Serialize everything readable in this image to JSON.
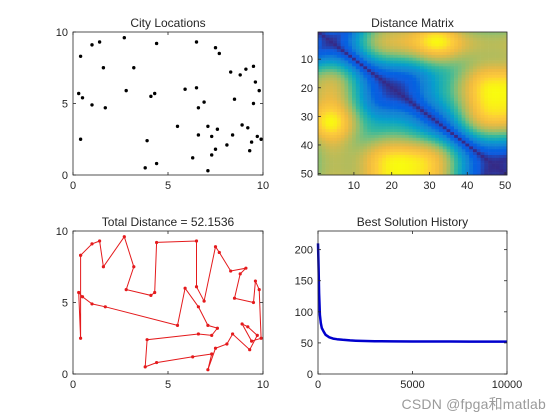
{
  "watermark": "CSDN @fpga和matlab",
  "chart_data": [
    {
      "type": "scatter",
      "title": "City Locations",
      "xlim": [
        0,
        10
      ],
      "ylim": [
        0,
        10
      ],
      "xticks": [
        "0",
        "5",
        "10"
      ],
      "yticks": [
        "0",
        "5",
        "10"
      ],
      "marker_color": "#000000",
      "points": [
        [
          0.4,
          8.3
        ],
        [
          1.0,
          9.1
        ],
        [
          1.4,
          9.3
        ],
        [
          1.6,
          7.5
        ],
        [
          2.7,
          9.6
        ],
        [
          3.2,
          7.5
        ],
        [
          4.4,
          9.2
        ],
        [
          6.5,
          9.3
        ],
        [
          7.5,
          8.9
        ],
        [
          7.7,
          8.5
        ],
        [
          8.8,
          7.0
        ],
        [
          9.5,
          7.6
        ],
        [
          9.6,
          6.5
        ],
        [
          0.3,
          5.7
        ],
        [
          0.5,
          5.4
        ],
        [
          1.0,
          4.9
        ],
        [
          1.7,
          4.7
        ],
        [
          2.8,
          5.9
        ],
        [
          4.1,
          5.5
        ],
        [
          4.3,
          5.7
        ],
        [
          6.6,
          4.7
        ],
        [
          6.5,
          6.1
        ],
        [
          6.9,
          5.1
        ],
        [
          9.5,
          5.0
        ],
        [
          9.8,
          5.9
        ],
        [
          0.4,
          2.5
        ],
        [
          3.9,
          2.4
        ],
        [
          5.5,
          3.4
        ],
        [
          6.6,
          2.8
        ],
        [
          7.1,
          3.4
        ],
        [
          7.6,
          3.2
        ],
        [
          7.3,
          2.7
        ],
        [
          8.1,
          2.1
        ],
        [
          8.4,
          2.8
        ],
        [
          9.2,
          3.3
        ],
        [
          9.4,
          2.3
        ],
        [
          9.7,
          2.7
        ],
        [
          9.9,
          2.5
        ],
        [
          7.5,
          1.8
        ],
        [
          9.3,
          1.7
        ],
        [
          3.8,
          0.5
        ],
        [
          4.4,
          0.8
        ],
        [
          6.3,
          1.2
        ],
        [
          7.1,
          0.3
        ],
        [
          7.3,
          1.4
        ],
        [
          8.5,
          5.3
        ],
        [
          5.9,
          6.0
        ],
        [
          8.9,
          3.5
        ],
        [
          9.1,
          7.4
        ],
        [
          8.3,
          7.2
        ]
      ]
    },
    {
      "type": "heatmap",
      "title": "Distance Matrix",
      "xlim": [
        0.5,
        50.5
      ],
      "ylim": [
        0.5,
        50.5
      ],
      "xticks": [
        "10",
        "20",
        "30",
        "40",
        "50"
      ],
      "yticks": [
        "10",
        "20",
        "30",
        "40",
        "50"
      ],
      "size": 50,
      "colormap": "parula"
    },
    {
      "type": "line",
      "title": "Total Distance = 52.1536",
      "xlim": [
        0,
        10
      ],
      "ylim": [
        0,
        10
      ],
      "xticks": [
        "0",
        "5",
        "10"
      ],
      "yticks": [
        "0",
        "5",
        "10"
      ],
      "line_color": "#e41a1c",
      "route": [
        [
          0.4,
          8.3
        ],
        [
          1.0,
          9.1
        ],
        [
          1.4,
          9.3
        ],
        [
          1.6,
          7.5
        ],
        [
          2.7,
          9.6
        ],
        [
          3.2,
          7.5
        ],
        [
          2.8,
          5.9
        ],
        [
          4.1,
          5.5
        ],
        [
          4.3,
          5.7
        ],
        [
          4.4,
          9.2
        ],
        [
          6.5,
          9.3
        ],
        [
          6.5,
          6.1
        ],
        [
          6.9,
          5.1
        ],
        [
          7.5,
          8.9
        ],
        [
          7.7,
          8.5
        ],
        [
          8.3,
          7.2
        ],
        [
          9.1,
          7.4
        ],
        [
          8.8,
          7.0
        ],
        [
          8.5,
          5.3
        ],
        [
          9.5,
          5.0
        ],
        [
          9.6,
          6.5
        ],
        [
          9.8,
          5.9
        ],
        [
          9.9,
          2.5
        ],
        [
          9.4,
          2.3
        ],
        [
          8.9,
          3.5
        ],
        [
          9.2,
          3.3
        ],
        [
          9.7,
          2.7
        ],
        [
          9.3,
          1.7
        ],
        [
          8.4,
          2.8
        ],
        [
          8.1,
          2.1
        ],
        [
          7.5,
          1.8
        ],
        [
          7.1,
          0.3
        ],
        [
          7.3,
          1.4
        ],
        [
          6.3,
          1.2
        ],
        [
          4.4,
          0.8
        ],
        [
          3.8,
          0.5
        ],
        [
          3.9,
          2.4
        ],
        [
          6.6,
          2.8
        ],
        [
          7.3,
          2.7
        ],
        [
          7.6,
          3.2
        ],
        [
          7.1,
          3.4
        ],
        [
          6.6,
          4.7
        ],
        [
          5.9,
          6.0
        ],
        [
          5.5,
          3.4
        ],
        [
          1.7,
          4.7
        ],
        [
          1.0,
          4.9
        ],
        [
          0.5,
          5.4
        ],
        [
          0.3,
          5.7
        ],
        [
          0.4,
          2.5
        ],
        [
          0.4,
          8.3
        ]
      ]
    },
    {
      "type": "line",
      "title": "Best Solution History",
      "xlim": [
        0,
        10000
      ],
      "ylim": [
        0,
        230
      ],
      "xticks": [
        "0",
        "5000",
        "10000"
      ],
      "yticks": [
        "0",
        "50",
        "100",
        "150",
        "200"
      ],
      "line_color": "#0000cd",
      "x": [
        0,
        30,
        60,
        100,
        150,
        200,
        300,
        400,
        600,
        800,
        1000,
        1300,
        1700,
        2000,
        2500,
        3000,
        4000,
        5000,
        6000,
        7000,
        8000,
        9000,
        10000
      ],
      "y": [
        210,
        170,
        130,
        95,
        82,
        74,
        68,
        63,
        59,
        57,
        56,
        55,
        54,
        53.5,
        53,
        52.8,
        52.5,
        52.3,
        52.2,
        52.2,
        52.15,
        52.15,
        52.15
      ]
    }
  ]
}
